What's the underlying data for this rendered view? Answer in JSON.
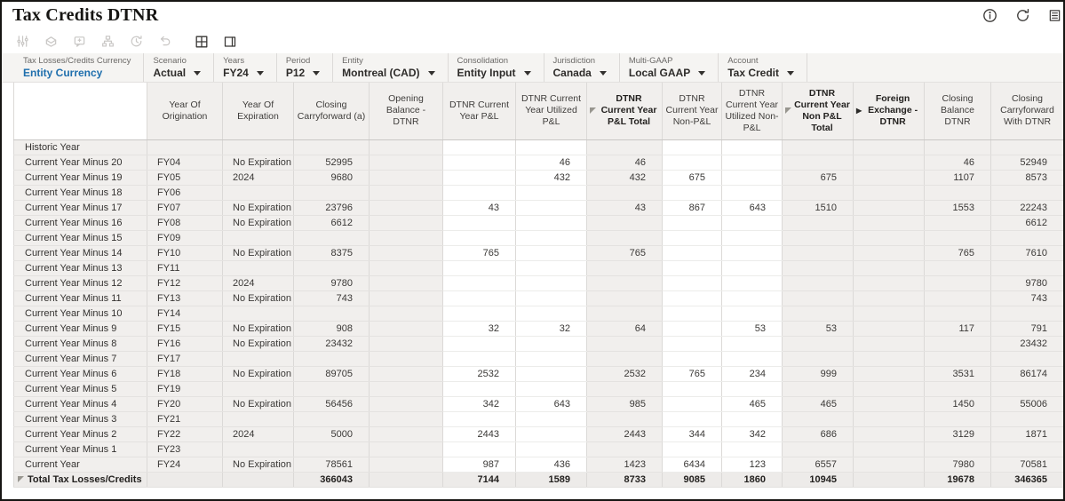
{
  "title": "Tax Credits DTNR",
  "colors": {
    "accent_blue": "#1f6fad",
    "frame": "#161513",
    "pov_bg": "#f5f4f2",
    "cell_gray": "#f1efed"
  },
  "titlebar_icons": [
    {
      "name": "info-icon"
    },
    {
      "name": "refresh-icon"
    },
    {
      "name": "actions-menu-icon"
    }
  ],
  "toolbar": {
    "icons": [
      {
        "name": "adjust-filter-icon",
        "enabled": false
      },
      {
        "name": "export-icon",
        "enabled": false
      },
      {
        "name": "add-comment-icon",
        "enabled": false
      },
      {
        "name": "hierarchy-icon",
        "enabled": false
      },
      {
        "name": "history-icon",
        "enabled": false
      },
      {
        "name": "undo-icon",
        "enabled": false
      },
      {
        "name": "grid-icon",
        "enabled": true
      },
      {
        "name": "layout-icon",
        "enabled": true
      }
    ]
  },
  "pov": {
    "segments": [
      {
        "label": "Tax Losses/Credits Currency",
        "value": "Entity Currency",
        "link": true,
        "dropdown": false
      },
      {
        "label": "Scenario",
        "value": "Actual",
        "link": false,
        "dropdown": true
      },
      {
        "label": "Years",
        "value": "FY24",
        "link": false,
        "dropdown": true
      },
      {
        "label": "Period",
        "value": "P12",
        "link": false,
        "dropdown": true
      },
      {
        "label": "Entity",
        "value": "Montreal (CAD)",
        "link": false,
        "dropdown": true
      },
      {
        "label": "Consolidation",
        "value": "Entity Input",
        "link": false,
        "dropdown": true
      },
      {
        "label": "Jurisdiction",
        "value": "Canada",
        "link": false,
        "dropdown": true
      },
      {
        "label": "Multi-GAAP",
        "value": "Local GAAP",
        "link": false,
        "dropdown": true
      },
      {
        "label": "Account",
        "value": "Tax Credit",
        "link": false,
        "dropdown": true
      }
    ]
  },
  "table": {
    "columns": [
      {
        "label": "Year Of Origination"
      },
      {
        "label": "Year Of Expiration"
      },
      {
        "label": "Closing Carryforward (a)"
      },
      {
        "label": "Opening Balance - DTNR"
      },
      {
        "label": "DTNR Current Year P&L"
      },
      {
        "label": "DTNR Current Year Utilized P&L"
      },
      {
        "label": "DTNR Current Year P&L Total",
        "bold": true,
        "marker": "collapse"
      },
      {
        "label": "DTNR Current Year Non-P&L"
      },
      {
        "label": "DTNR Current Year Utilized Non-P&L"
      },
      {
        "label": "DTNR Current Year Non P&L Total",
        "bold": true,
        "marker": "collapse"
      },
      {
        "label": "Foreign Exchange - DTNR",
        "bold": true,
        "marker": "expand"
      },
      {
        "label": "Closing Balance DTNR"
      },
      {
        "label": "Closing Carryforward With DTNR"
      }
    ],
    "rows": [
      {
        "label": "Historic Year",
        "cells": [
          "",
          "",
          "",
          "",
          "",
          "",
          "",
          "",
          "",
          "",
          "",
          "",
          ""
        ]
      },
      {
        "label": "Current Year Minus 20",
        "cells": [
          "FY04",
          "No Expiration",
          "52995",
          "",
          "",
          "46",
          "46",
          "",
          "",
          "",
          "",
          "46",
          "52949"
        ]
      },
      {
        "label": "Current Year Minus 19",
        "cells": [
          "FY05",
          "2024",
          "9680",
          "",
          "",
          "432",
          "432",
          "675",
          "",
          "675",
          "",
          "1107",
          "8573"
        ]
      },
      {
        "label": "Current Year Minus 18",
        "cells": [
          "FY06",
          "",
          "",
          "",
          "",
          "",
          "",
          "",
          "",
          "",
          "",
          "",
          ""
        ]
      },
      {
        "label": "Current Year Minus 17",
        "cells": [
          "FY07",
          "No Expiration",
          "23796",
          "",
          "43",
          "",
          "43",
          "867",
          "643",
          "1510",
          "",
          "1553",
          "22243"
        ]
      },
      {
        "label": "Current Year Minus 16",
        "cells": [
          "FY08",
          "No Expiration",
          "6612",
          "",
          "",
          "",
          "",
          "",
          "",
          "",
          "",
          "",
          "6612"
        ]
      },
      {
        "label": "Current Year Minus 15",
        "cells": [
          "FY09",
          "",
          "",
          "",
          "",
          "",
          "",
          "",
          "",
          "",
          "",
          "",
          ""
        ]
      },
      {
        "label": "Current Year Minus 14",
        "cells": [
          "FY10",
          "No Expiration",
          "8375",
          "",
          "765",
          "",
          "765",
          "",
          "",
          "",
          "",
          "765",
          "7610"
        ]
      },
      {
        "label": "Current Year Minus 13",
        "cells": [
          "FY11",
          "",
          "",
          "",
          "",
          "",
          "",
          "",
          "",
          "",
          "",
          "",
          ""
        ]
      },
      {
        "label": "Current Year Minus 12",
        "cells": [
          "FY12",
          "2024",
          "9780",
          "",
          "",
          "",
          "",
          "",
          "",
          "",
          "",
          "",
          "9780"
        ]
      },
      {
        "label": "Current Year Minus 11",
        "cells": [
          "FY13",
          "No Expiration",
          "743",
          "",
          "",
          "",
          "",
          "",
          "",
          "",
          "",
          "",
          "743"
        ]
      },
      {
        "label": "Current Year Minus 10",
        "cells": [
          "FY14",
          "",
          "",
          "",
          "",
          "",
          "",
          "",
          "",
          "",
          "",
          "",
          ""
        ]
      },
      {
        "label": "Current Year Minus 9",
        "cells": [
          "FY15",
          "No Expiration",
          "908",
          "",
          "32",
          "32",
          "64",
          "",
          "53",
          "53",
          "",
          "117",
          "791"
        ]
      },
      {
        "label": "Current Year Minus 8",
        "cells": [
          "FY16",
          "No Expiration",
          "23432",
          "",
          "",
          "",
          "",
          "",
          "",
          "",
          "",
          "",
          "23432"
        ]
      },
      {
        "label": "Current Year Minus 7",
        "cells": [
          "FY17",
          "",
          "",
          "",
          "",
          "",
          "",
          "",
          "",
          "",
          "",
          "",
          ""
        ]
      },
      {
        "label": "Current Year Minus 6",
        "cells": [
          "FY18",
          "No Expiration",
          "89705",
          "",
          "2532",
          "",
          "2532",
          "765",
          "234",
          "999",
          "",
          "3531",
          "86174"
        ]
      },
      {
        "label": "Current Year Minus 5",
        "cells": [
          "FY19",
          "",
          "",
          "",
          "",
          "",
          "",
          "",
          "",
          "",
          "",
          "",
          ""
        ]
      },
      {
        "label": "Current Year Minus 4",
        "cells": [
          "FY20",
          "No Expiration",
          "56456",
          "",
          "342",
          "643",
          "985",
          "",
          "465",
          "465",
          "",
          "1450",
          "55006"
        ]
      },
      {
        "label": "Current Year Minus 3",
        "cells": [
          "FY21",
          "",
          "",
          "",
          "",
          "",
          "",
          "",
          "",
          "",
          "",
          "",
          ""
        ]
      },
      {
        "label": "Current Year Minus 2",
        "cells": [
          "FY22",
          "2024",
          "5000",
          "",
          "2443",
          "",
          "2443",
          "344",
          "342",
          "686",
          "",
          "3129",
          "1871"
        ]
      },
      {
        "label": "Current Year Minus 1",
        "cells": [
          "FY23",
          "",
          "",
          "",
          "",
          "",
          "",
          "",
          "",
          "",
          "",
          "",
          ""
        ]
      },
      {
        "label": "Current Year",
        "cells": [
          "FY24",
          "No Expiration",
          "78561",
          "",
          "987",
          "436",
          "1423",
          "6434",
          "123",
          "6557",
          "",
          "7980",
          "70581"
        ]
      },
      {
        "label": "Total Tax Losses/Credits",
        "total": true,
        "marker": "collapse",
        "cells": [
          "",
          "",
          "366043",
          "",
          "7144",
          "1589",
          "8733",
          "9085",
          "1860",
          "10945",
          "",
          "19678",
          "346365"
        ]
      }
    ]
  }
}
